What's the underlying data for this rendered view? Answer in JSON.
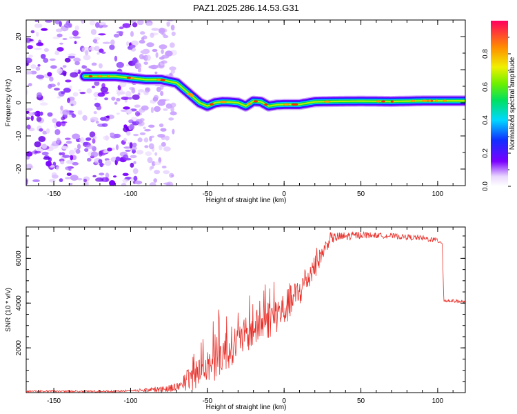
{
  "title": "PAZ1.2025.286.14.53.G31",
  "chart_data": [
    {
      "type": "heatmap",
      "xlabel": "Height of straight line (km)",
      "ylabel": "Frequency (Hz)",
      "xlim": [
        -168,
        118
      ],
      "ylim": [
        -25,
        25
      ],
      "xticks": [
        -150,
        -100,
        -50,
        0,
        50,
        100
      ],
      "yticks": [
        -20,
        -10,
        0,
        10,
        20
      ],
      "ridge": {
        "x": [
          -130,
          -120,
          -110,
          -100,
          -90,
          -80,
          -70,
          -65,
          -60,
          -55,
          -50,
          -45,
          -40,
          -35,
          -30,
          -25,
          -20,
          -15,
          -10,
          -5,
          0,
          10,
          20,
          30,
          50,
          70,
          90,
          100,
          110,
          118
        ],
        "y": [
          8,
          8,
          8,
          7.5,
          7,
          7,
          6,
          4,
          2,
          0,
          -1,
          0,
          0.3,
          0.2,
          0,
          -1,
          0.5,
          0.3,
          -1,
          -0.6,
          -0.5,
          -0.5,
          0.3,
          0.4,
          0.5,
          0.4,
          0.6,
          0.6,
          0.6,
          0.6
        ]
      },
      "noise_region_x": [
        -168,
        -80
      ],
      "colorbar": {
        "label": "Normalized spectral amplitude",
        "range": [
          0,
          1
        ],
        "ticks": [
          "0.0",
          "0.2",
          "0.4",
          "0.6",
          "0.8"
        ]
      }
    },
    {
      "type": "line",
      "xlabel": "Height of straight line (km)",
      "ylabel": "SNR (10 * v/v)",
      "xlim": [
        -168,
        118
      ],
      "ylim": [
        0,
        7400
      ],
      "xticks": [
        -150,
        -100,
        -50,
        0,
        50,
        100
      ],
      "yticks": [
        2000,
        4000,
        6000
      ],
      "color": "#e8302a",
      "trend": {
        "x": [
          -168,
          -110,
          -80,
          -70,
          -60,
          -50,
          -40,
          -30,
          -20,
          -10,
          0,
          10,
          20,
          30,
          50,
          70,
          90,
          100,
          103,
          104,
          110,
          118
        ],
        "y": [
          60,
          60,
          150,
          250,
          700,
          1200,
          1800,
          2300,
          2800,
          3300,
          3700,
          4500,
          5600,
          6900,
          7050,
          7000,
          6900,
          6800,
          6700,
          4100,
          4100,
          4050
        ]
      },
      "noise_amplitude": {
        "x": [
          -168,
          -100,
          -70,
          -60,
          -50,
          -40,
          -30,
          -20,
          -10,
          0,
          10,
          20,
          30,
          60,
          100,
          104,
          118
        ],
        "y": [
          40,
          40,
          200,
          600,
          900,
          1000,
          800,
          800,
          900,
          800,
          700,
          500,
          250,
          120,
          120,
          80,
          60
        ]
      }
    }
  ]
}
